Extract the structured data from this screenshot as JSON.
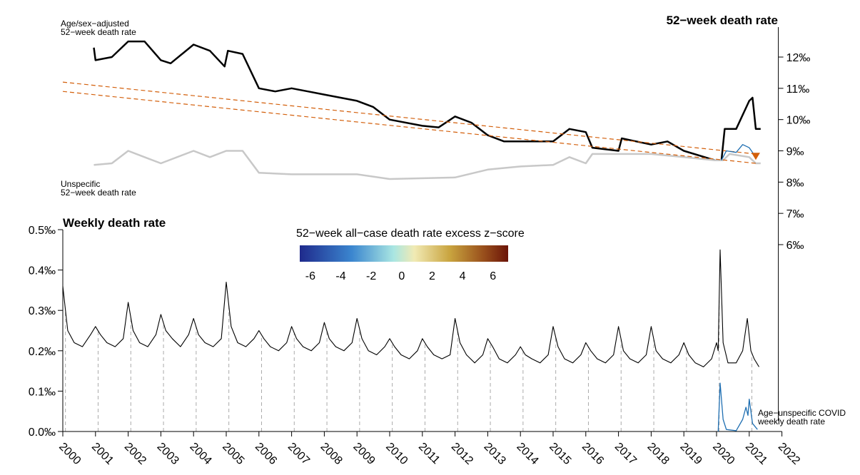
{
  "chart_data": {
    "type": "line",
    "title": "52−week death rate",
    "subtitle": "Weekly death rate",
    "xlim": [
      2000,
      2022
    ],
    "xticks": [
      2000,
      2001,
      2002,
      2003,
      2004,
      2005,
      2006,
      2007,
      2008,
      2009,
      2010,
      2011,
      2012,
      2013,
      2014,
      2015,
      2016,
      2017,
      2018,
      2019,
      2020,
      2021,
      2022
    ],
    "ylim": [
      0,
      0.5
    ],
    "yticks": [
      {
        "value": 0,
        "label": "0.0‰"
      },
      {
        "value": 0.1,
        "label": "0.1‰"
      },
      {
        "value": 0.2,
        "label": "0.2‰"
      },
      {
        "value": 0.3,
        "label": "0.3‰"
      },
      {
        "value": 0.4,
        "label": "0.4‰"
      },
      {
        "value": 0.5,
        "label": "0.5‰"
      }
    ],
    "y2lim": [
      6,
      12
    ],
    "y2ticks": [
      {
        "value": 6,
        "label": "6‰"
      },
      {
        "value": 7,
        "label": "7‰"
      },
      {
        "value": 8,
        "label": "8‰"
      },
      {
        "value": 9,
        "label": "9‰"
      },
      {
        "value": 10,
        "label": "10‰"
      },
      {
        "value": 11,
        "label": "11‰"
      },
      {
        "value": 12,
        "label": "12‰"
      }
    ],
    "colorbar": {
      "title": "52−week all−case death rate excess z−score",
      "range": [
        -6.7,
        7
      ],
      "ticks": [
        -6,
        -4,
        -2,
        0,
        2,
        4,
        6
      ]
    },
    "series": [
      {
        "label": [
          "Age/sex−adjusted",
          "52−week death rate"
        ],
        "color": "#000000",
        "width": 2.5,
        "axis": "y2",
        "x": [
          2000.95,
          2001.0,
          2001.5,
          2002.0,
          2002.5,
          2003.0,
          2003.3,
          2004.0,
          2004.5,
          2004.95,
          2005.05,
          2005.5,
          2006.0,
          2006.5,
          2007.0,
          2007.5,
          2008.0,
          2009.0,
          2009.5,
          2010.0,
          2011.0,
          2011.5,
          2012.0,
          2012.5,
          2013.0,
          2013.5,
          2014.0,
          2015.0,
          2015.5,
          2016.0,
          2016.2,
          2017.0,
          2017.1,
          2018.0,
          2018.5,
          2019.0,
          2019.95,
          2020.15,
          2020.25,
          2020.6,
          2021.0,
          2021.1,
          2021.2,
          2021.35
        ],
        "values": [
          12.3,
          11.9,
          12.0,
          12.5,
          12.5,
          11.9,
          11.8,
          12.4,
          12.2,
          11.7,
          12.2,
          12.1,
          11.0,
          10.9,
          11.0,
          10.9,
          10.8,
          10.6,
          10.4,
          10.0,
          9.8,
          9.75,
          10.1,
          9.9,
          9.5,
          9.3,
          9.3,
          9.3,
          9.7,
          9.6,
          9.1,
          9.0,
          9.4,
          9.2,
          9.3,
          9.0,
          8.7,
          8.7,
          9.7,
          9.7,
          10.6,
          10.7,
          9.7,
          9.7
        ]
      },
      {
        "label": [
          "Unspecific",
          "52−week death rate"
        ],
        "color": "#c8c8c8",
        "width": 2.5,
        "axis": "y2",
        "x": [
          2000.95,
          2001.5,
          2002.0,
          2002.5,
          2003.0,
          2004.0,
          2004.5,
          2005.0,
          2005.5,
          2006.0,
          2007.0,
          2009.0,
          2010.0,
          2012.0,
          2013.0,
          2014.0,
          2015.0,
          2015.5,
          2016.0,
          2016.2,
          2017.0,
          2018.0,
          2019.0,
          2019.95,
          2020.2,
          2020.4,
          2021.0,
          2021.2,
          2021.35
        ],
        "values": [
          8.55,
          8.6,
          9.0,
          8.8,
          8.6,
          9.0,
          8.8,
          9.0,
          9.0,
          8.3,
          8.25,
          8.25,
          8.1,
          8.15,
          8.4,
          8.5,
          8.55,
          8.8,
          8.6,
          8.9,
          8.9,
          8.9,
          8.8,
          8.7,
          8.7,
          8.9,
          8.8,
          8.6,
          8.6
        ]
      },
      {
        "color": "#d35f0b",
        "width": 1.2,
        "dash": true,
        "axis": "y2",
        "x": [
          2000,
          2021.2
        ],
        "values": [
          11.2,
          8.9
        ]
      },
      {
        "color": "#d35f0b",
        "width": 1.2,
        "dash": true,
        "axis": "y2",
        "x": [
          2000,
          2021.2
        ],
        "values": [
          10.9,
          8.6
        ]
      },
      {
        "color": "#1f6fb2",
        "width": 1.3,
        "axis": "y2",
        "x": [
          2020.15,
          2020.3,
          2020.6,
          2020.8,
          2021.0,
          2021.2
        ],
        "values": [
          8.7,
          9.0,
          8.95,
          9.2,
          9.1,
          8.8
        ]
      },
      {
        "color": "#d35f0b",
        "marker": "triangle",
        "axis": "y2",
        "x": [
          2021.2
        ],
        "values": [
          8.8
        ]
      },
      {
        "color": "#000000",
        "width": 1.1,
        "x": [
          2000,
          2000.15,
          2000.35,
          2000.6,
          2000.85,
          2001,
          2001.15,
          2001.35,
          2001.6,
          2001.85,
          2002,
          2002.15,
          2002.35,
          2002.6,
          2002.85,
          2003,
          2003.15,
          2003.35,
          2003.6,
          2003.85,
          2004,
          2004.15,
          2004.35,
          2004.6,
          2004.85,
          2005,
          2005.15,
          2005.35,
          2005.6,
          2005.85,
          2006,
          2006.15,
          2006.35,
          2006.6,
          2006.85,
          2007,
          2007.15,
          2007.35,
          2007.6,
          2007.85,
          2008,
          2008.15,
          2008.35,
          2008.6,
          2008.85,
          2009,
          2009.15,
          2009.35,
          2009.6,
          2009.85,
          2010,
          2010.15,
          2010.35,
          2010.6,
          2010.85,
          2011,
          2011.15,
          2011.35,
          2011.6,
          2011.85,
          2012,
          2012.15,
          2012.35,
          2012.6,
          2012.85,
          2013,
          2013.15,
          2013.35,
          2013.6,
          2013.85,
          2014,
          2014.15,
          2014.35,
          2014.6,
          2014.85,
          2015,
          2015.15,
          2015.35,
          2015.6,
          2015.85,
          2016,
          2016.15,
          2016.35,
          2016.6,
          2016.85,
          2017,
          2017.15,
          2017.35,
          2017.6,
          2017.85,
          2018,
          2018.15,
          2018.35,
          2018.6,
          2018.85,
          2019,
          2019.15,
          2019.35,
          2019.6,
          2019.85,
          2020,
          2020.05,
          2020.11,
          2020.2,
          2020.35,
          2020.6,
          2020.8,
          2020.94,
          2021.05,
          2021.15,
          2021.3
        ],
        "values": [
          0.36,
          0.25,
          0.22,
          0.21,
          0.24,
          0.26,
          0.24,
          0.22,
          0.21,
          0.23,
          0.32,
          0.25,
          0.22,
          0.21,
          0.24,
          0.29,
          0.25,
          0.23,
          0.21,
          0.24,
          0.28,
          0.24,
          0.22,
          0.21,
          0.23,
          0.37,
          0.26,
          0.22,
          0.21,
          0.23,
          0.25,
          0.23,
          0.21,
          0.2,
          0.22,
          0.26,
          0.23,
          0.21,
          0.2,
          0.22,
          0.27,
          0.23,
          0.21,
          0.2,
          0.22,
          0.28,
          0.23,
          0.2,
          0.19,
          0.21,
          0.23,
          0.21,
          0.19,
          0.18,
          0.2,
          0.23,
          0.21,
          0.19,
          0.18,
          0.19,
          0.28,
          0.22,
          0.19,
          0.17,
          0.19,
          0.23,
          0.21,
          0.18,
          0.17,
          0.19,
          0.21,
          0.19,
          0.18,
          0.17,
          0.19,
          0.26,
          0.21,
          0.18,
          0.17,
          0.19,
          0.22,
          0.2,
          0.18,
          0.17,
          0.19,
          0.26,
          0.2,
          0.18,
          0.17,
          0.19,
          0.26,
          0.2,
          0.18,
          0.17,
          0.19,
          0.22,
          0.19,
          0.17,
          0.16,
          0.18,
          0.22,
          0.2,
          0.45,
          0.22,
          0.17,
          0.17,
          0.2,
          0.28,
          0.2,
          0.18,
          0.16
        ]
      },
      {
        "label": [
          "Age−unspecific COVID",
          "weekly death rate"
        ],
        "color": "#1f6fb2",
        "width": 1.3,
        "x": [
          2020.05,
          2020.11,
          2020.2,
          2020.3,
          2020.6,
          2020.8,
          2020.9,
          2020.96,
          2021.0,
          2021.1,
          2021.25
        ],
        "values": [
          0,
          0.12,
          0.03,
          0.005,
          0.002,
          0.03,
          0.06,
          0.04,
          0.08,
          0.02,
          0.005
        ]
      }
    ]
  }
}
